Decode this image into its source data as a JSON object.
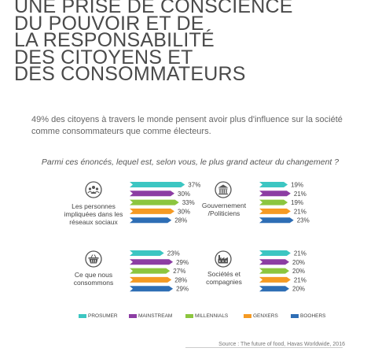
{
  "title_lines": [
    "UNE PRISE DE CONSCIENCE",
    "DU POUVOIR ET DE",
    "LA RESPONSABILITÉ",
    "DES CITOYENS ET",
    "DES CONSOMMATEURS"
  ],
  "intro": "49% des citoyens à travers le monde pensent avoir plus d'influence sur la société comme consommateurs que comme électeurs.",
  "question": "Parmi ces énoncés, lequel est, selon vous, le plus grand acteur du changement ?",
  "source": "Source : The future of food, Havas Worldwide, 2016",
  "colors": {
    "prosumer": "#3cc6c2",
    "mainstream": "#8c3da3",
    "millennials": "#8cc63f",
    "genxers": "#f59a23",
    "boomers": "#2e6eb5"
  },
  "chart_data": {
    "type": "bar",
    "series_names": [
      "PROSUMER",
      "MAINSTREAM",
      "MILLENNIALS",
      "GENXERS",
      "BOOHERS"
    ],
    "panels": [
      {
        "label": "Les personnes impliquées dans les réseaux sociaux",
        "icon": "network-icon",
        "values": [
          37,
          30,
          33,
          30,
          28
        ]
      },
      {
        "label": "Gouvernement /Politiciens",
        "icon": "government-building-icon",
        "values": [
          19,
          21,
          19,
          21,
          23
        ]
      },
      {
        "label": "Ce que nous consommons",
        "icon": "shopping-basket-icon",
        "values": [
          23,
          29,
          27,
          28,
          29
        ]
      },
      {
        "label": "Sociétés et compagnies",
        "icon": "factory-icon",
        "values": [
          21,
          20,
          20,
          21,
          20
        ]
      }
    ],
    "value_suffix": "%"
  },
  "panel_labels": {
    "p0": "Les personnes impliquées dans les réseaux sociaux",
    "p1": "Gouvernement /Politiciens",
    "p2": "Ce que nous consommons",
    "p3": "Sociétés et compagnies"
  },
  "legend": [
    "PROSUMER",
    "MAINSTREAM",
    "MILLENNIALS",
    "GENXERS",
    "BOOHERS"
  ]
}
